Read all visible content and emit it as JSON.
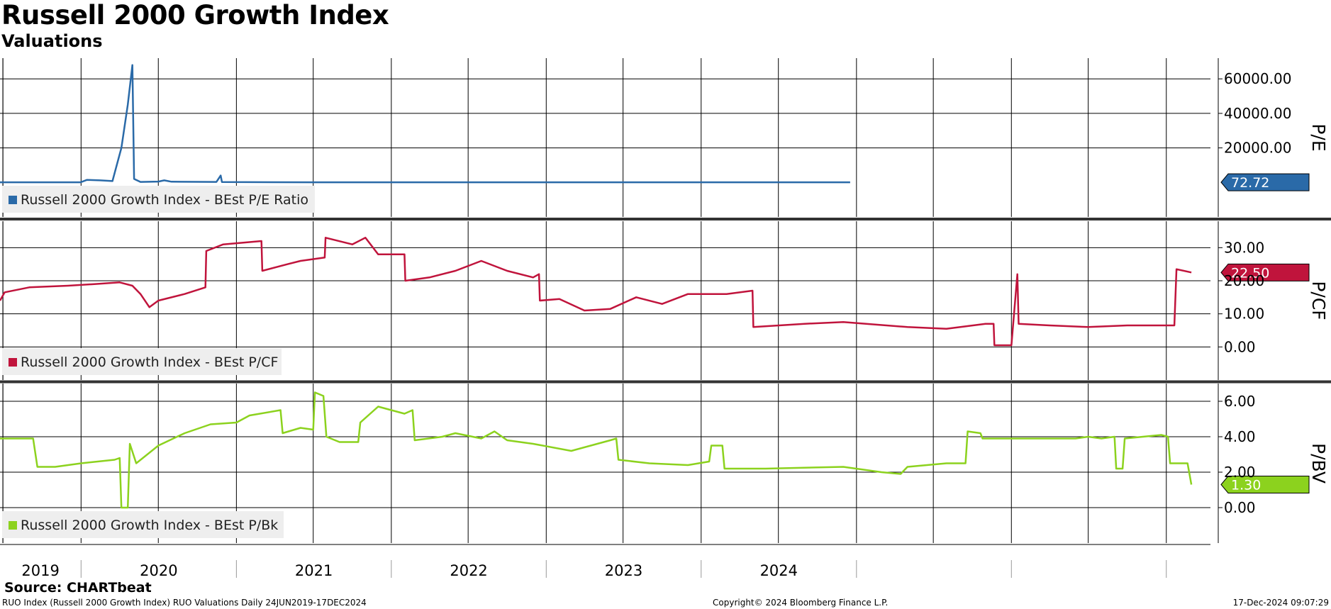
{
  "header": {
    "title": "Russell 2000 Growth Index",
    "subtitle": "Valuations"
  },
  "footer": {
    "source": "Source:  CHARTbeat",
    "left": "RUO Index (Russell 2000 Growth Index) RUO Valuations  Daily 24JUN2019-17DEC2024",
    "middle": "Copyright© 2024 Bloomberg Finance L.P.",
    "right": "17-Dec-2024 09:07:29"
  },
  "chart_data": [
    {
      "type": "line",
      "axis_label": "P/E",
      "series": [
        {
          "name": "Russell 2000 Growth Index - BEst P/E Ratio",
          "color": "#2a6aa8",
          "last_value_label": "72.72",
          "points": [
            [
              "2019-06-24",
              80
            ],
            [
              "2019-12-31",
              90
            ],
            [
              "2020-01-15",
              1500
            ],
            [
              "2020-02-15",
              1200
            ],
            [
              "2020-03-15",
              800
            ],
            [
              "2020-04-05",
              20000
            ],
            [
              "2020-04-20",
              45000
            ],
            [
              "2020-05-01",
              68000
            ],
            [
              "2020-05-05",
              2000
            ],
            [
              "2020-05-20",
              300
            ],
            [
              "2020-07-01",
              500
            ],
            [
              "2020-07-15",
              1200
            ],
            [
              "2020-08-01",
              400
            ],
            [
              "2020-11-15",
              300
            ],
            [
              "2020-11-25",
              4000
            ],
            [
              "2020-11-28",
              200
            ],
            [
              "2021-06-30",
              90
            ],
            [
              "2022-12-30",
              80
            ],
            [
              "2024-12-17",
              72.72
            ]
          ]
        }
      ],
      "y_ticks": [
        "60000.00",
        "40000.00",
        "20000.00"
      ],
      "ylim": [
        -20000,
        72000
      ]
    },
    {
      "type": "line",
      "axis_label": "P/CF",
      "series": [
        {
          "name": "Russell 2000 Growth Index - BEst P/CF",
          "color": "#c0143c",
          "last_value_label": "22.50",
          "points": [
            [
              "2019-06-24",
              14
            ],
            [
              "2019-07-05",
              16.5
            ],
            [
              "2019-09-01",
              18
            ],
            [
              "2019-12-01",
              18.5
            ],
            [
              "2020-02-01",
              19
            ],
            [
              "2020-04-01",
              19.5
            ],
            [
              "2020-05-01",
              18.5
            ],
            [
              "2020-05-20",
              16
            ],
            [
              "2020-06-10",
              12
            ],
            [
              "2020-07-01",
              14
            ],
            [
              "2020-09-01",
              16
            ],
            [
              "2020-10-20",
              18
            ],
            [
              "2020-10-22",
              29
            ],
            [
              "2020-12-01",
              31
            ],
            [
              "2021-03-01",
              32
            ],
            [
              "2021-03-03",
              23
            ],
            [
              "2021-05-01",
              25
            ],
            [
              "2021-06-01",
              26
            ],
            [
              "2021-07-28",
              27
            ],
            [
              "2021-07-30",
              33
            ],
            [
              "2021-10-01",
              31
            ],
            [
              "2021-11-01",
              33
            ],
            [
              "2021-12-01",
              28
            ],
            [
              "2022-02-01",
              28
            ],
            [
              "2022-02-03",
              20
            ],
            [
              "2022-04-01",
              21
            ],
            [
              "2022-06-01",
              23
            ],
            [
              "2022-08-01",
              26
            ],
            [
              "2022-10-01",
              23
            ],
            [
              "2022-12-01",
              21
            ],
            [
              "2022-12-15",
              22
            ],
            [
              "2022-12-17",
              14
            ],
            [
              "2023-02-01",
              14.5
            ],
            [
              "2023-04-01",
              11
            ],
            [
              "2023-06-01",
              11.5
            ],
            [
              "2023-08-01",
              15
            ],
            [
              "2023-10-01",
              13
            ],
            [
              "2023-12-01",
              16
            ],
            [
              "2024-03-01",
              16
            ],
            [
              "2024-05-01",
              17
            ],
            [
              "2024-05-03",
              6
            ],
            [
              "2024-09-01",
              7
            ],
            [
              "2024-12-01",
              7.5
            ],
            [
              "2025-05-01",
              6
            ],
            [
              "2025-08-01",
              5.5
            ],
            [
              "2025-11-01",
              7
            ],
            [
              "2025-11-20",
              7
            ],
            [
              "2025-11-22",
              0.5
            ],
            [
              "2026-01-01",
              0.5
            ],
            [
              "2026-01-15",
              22
            ],
            [
              "2026-01-18",
              7
            ],
            [
              "2026-04-01",
              6.5
            ],
            [
              "2026-07-01",
              6
            ],
            [
              "2026-10-01",
              6.5
            ],
            [
              "2027-01-20",
              6.5
            ],
            [
              "2027-01-25",
              23.5
            ],
            [
              "2027-03-01",
              22.5
            ]
          ]
        }
      ],
      "y_ticks": [
        "30.00",
        "20.00",
        "10.00",
        "0.00"
      ],
      "ylim": [
        -10,
        38
      ]
    },
    {
      "type": "line",
      "axis_label": "P/BV",
      "series": [
        {
          "name": "Russell 2000 Growth Index - BEst P/Bk",
          "color": "#8cd21e",
          "last_value_label": "1.30",
          "points": [
            [
              "2019-06-24",
              3.9
            ],
            [
              "2019-09-10",
              3.9
            ],
            [
              "2019-09-20",
              2.3
            ],
            [
              "2019-11-01",
              2.3
            ],
            [
              "2020-01-01",
              2.5
            ],
            [
              "2020-03-20",
              2.7
            ],
            [
              "2020-04-01",
              2.8
            ],
            [
              "2020-04-05",
              0
            ],
            [
              "2020-04-20",
              0
            ],
            [
              "2020-04-25",
              3.6
            ],
            [
              "2020-05-10",
              2.5
            ],
            [
              "2020-07-01",
              3.5
            ],
            [
              "2020-09-01",
              4.2
            ],
            [
              "2020-11-01",
              4.7
            ],
            [
              "2021-01-01",
              4.8
            ],
            [
              "2021-02-01",
              5.2
            ],
            [
              "2021-04-15",
              5.5
            ],
            [
              "2021-04-20",
              4.2
            ],
            [
              "2021-06-01",
              4.5
            ],
            [
              "2021-07-01",
              4.4
            ],
            [
              "2021-07-05",
              6.5
            ],
            [
              "2021-07-25",
              6.3
            ],
            [
              "2021-08-01",
              4.0
            ],
            [
              "2021-09-01",
              3.7
            ],
            [
              "2021-10-15",
              3.7
            ],
            [
              "2021-10-20",
              4.8
            ],
            [
              "2021-12-01",
              5.7
            ],
            [
              "2022-02-01",
              5.3
            ],
            [
              "2022-02-20",
              5.5
            ],
            [
              "2022-02-25",
              3.8
            ],
            [
              "2022-05-01",
              4.0
            ],
            [
              "2022-06-01",
              4.2
            ],
            [
              "2022-08-01",
              3.9
            ],
            [
              "2022-09-01",
              4.3
            ],
            [
              "2022-10-01",
              3.8
            ],
            [
              "2022-12-01",
              3.6
            ],
            [
              "2023-03-01",
              3.2
            ],
            [
              "2023-06-01",
              3.8
            ],
            [
              "2023-06-15",
              3.9
            ],
            [
              "2023-06-20",
              2.7
            ],
            [
              "2023-09-01",
              2.5
            ],
            [
              "2023-12-01",
              2.4
            ],
            [
              "2024-01-20",
              2.6
            ],
            [
              "2024-01-25",
              3.5
            ],
            [
              "2024-02-20",
              3.5
            ],
            [
              "2024-02-25",
              2.2
            ],
            [
              "2024-06-01",
              2.2
            ],
            [
              "2024-12-01",
              2.3
            ],
            [
              "2025-03-01",
              2.0
            ],
            [
              "2025-04-15",
              1.9
            ],
            [
              "2025-05-01",
              2.3
            ],
            [
              "2025-08-01",
              2.5
            ],
            [
              "2025-09-15",
              2.5
            ],
            [
              "2025-09-20",
              4.3
            ],
            [
              "2025-10-20",
              4.2
            ],
            [
              "2025-10-25",
              3.9
            ],
            [
              "2026-03-01",
              3.9
            ],
            [
              "2026-06-01",
              3.9
            ],
            [
              "2026-07-01",
              4.0
            ],
            [
              "2026-08-01",
              3.9
            ],
            [
              "2026-09-01",
              4.0
            ],
            [
              "2026-09-05",
              2.2
            ],
            [
              "2026-09-20",
              2.2
            ],
            [
              "2026-09-25",
              3.9
            ],
            [
              "2026-12-20",
              4.1
            ],
            [
              "2027-01-05",
              4.0
            ],
            [
              "2027-01-10",
              2.5
            ],
            [
              "2027-02-20",
              2.5
            ],
            [
              "2027-03-01",
              1.3
            ]
          ]
        }
      ],
      "y_ticks": [
        "6.00",
        "4.00",
        "2.00",
        "0.00"
      ],
      "ylim": [
        -2,
        7
      ]
    }
  ],
  "x_axis": {
    "year_labels": [
      "2019",
      "2020",
      "2021",
      "2022",
      "2023",
      "2024"
    ],
    "x_range": [
      "2019-06-24",
      "2027-04-15"
    ]
  }
}
